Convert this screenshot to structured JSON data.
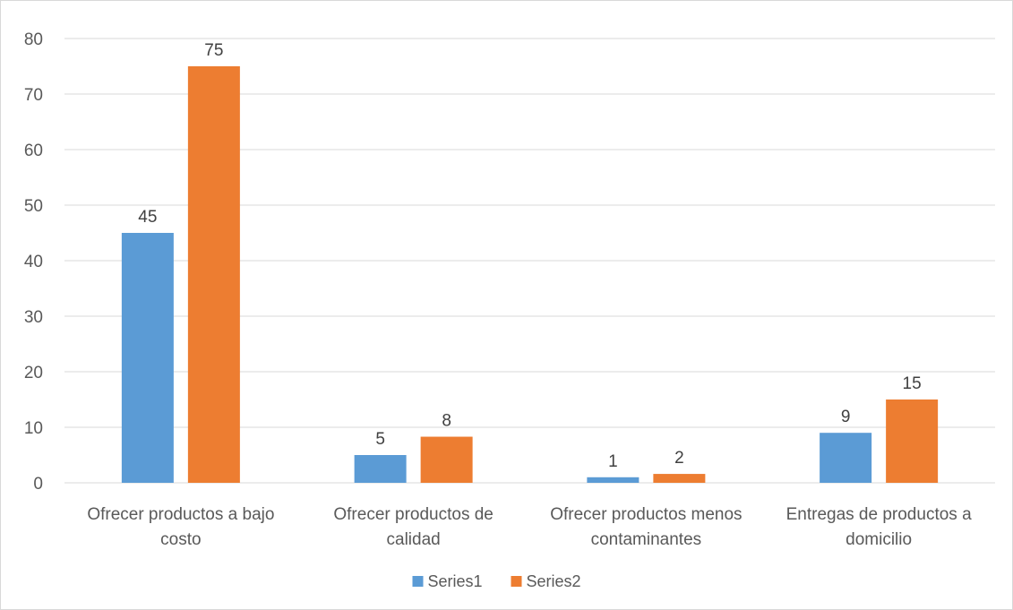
{
  "chart_data": {
    "type": "bar",
    "categories": [
      [
        "Ofrecer productos a bajo",
        "costo"
      ],
      [
        "Ofrecer productos de",
        "calidad"
      ],
      [
        "Ofrecer productos menos",
        "contaminantes"
      ],
      [
        "Entregas de productos a",
        "domicilio"
      ]
    ],
    "series": [
      {
        "name": "Series1",
        "values": [
          45,
          5,
          1,
          9
        ],
        "labels": [
          "45",
          "5",
          "1",
          "9"
        ],
        "color": "#5b9bd5"
      },
      {
        "name": "Series2",
        "values": [
          75,
          8.3,
          1.6,
          15
        ],
        "labels": [
          "75",
          "8",
          "2",
          "15"
        ],
        "color": "#ed7d31"
      }
    ],
    "ylim": [
      0,
      80
    ],
    "yticks": [
      0,
      10,
      20,
      30,
      40,
      50,
      60,
      70,
      80
    ],
    "grid": true,
    "legend": "bottom",
    "title": "",
    "xlabel": "",
    "ylabel": ""
  }
}
